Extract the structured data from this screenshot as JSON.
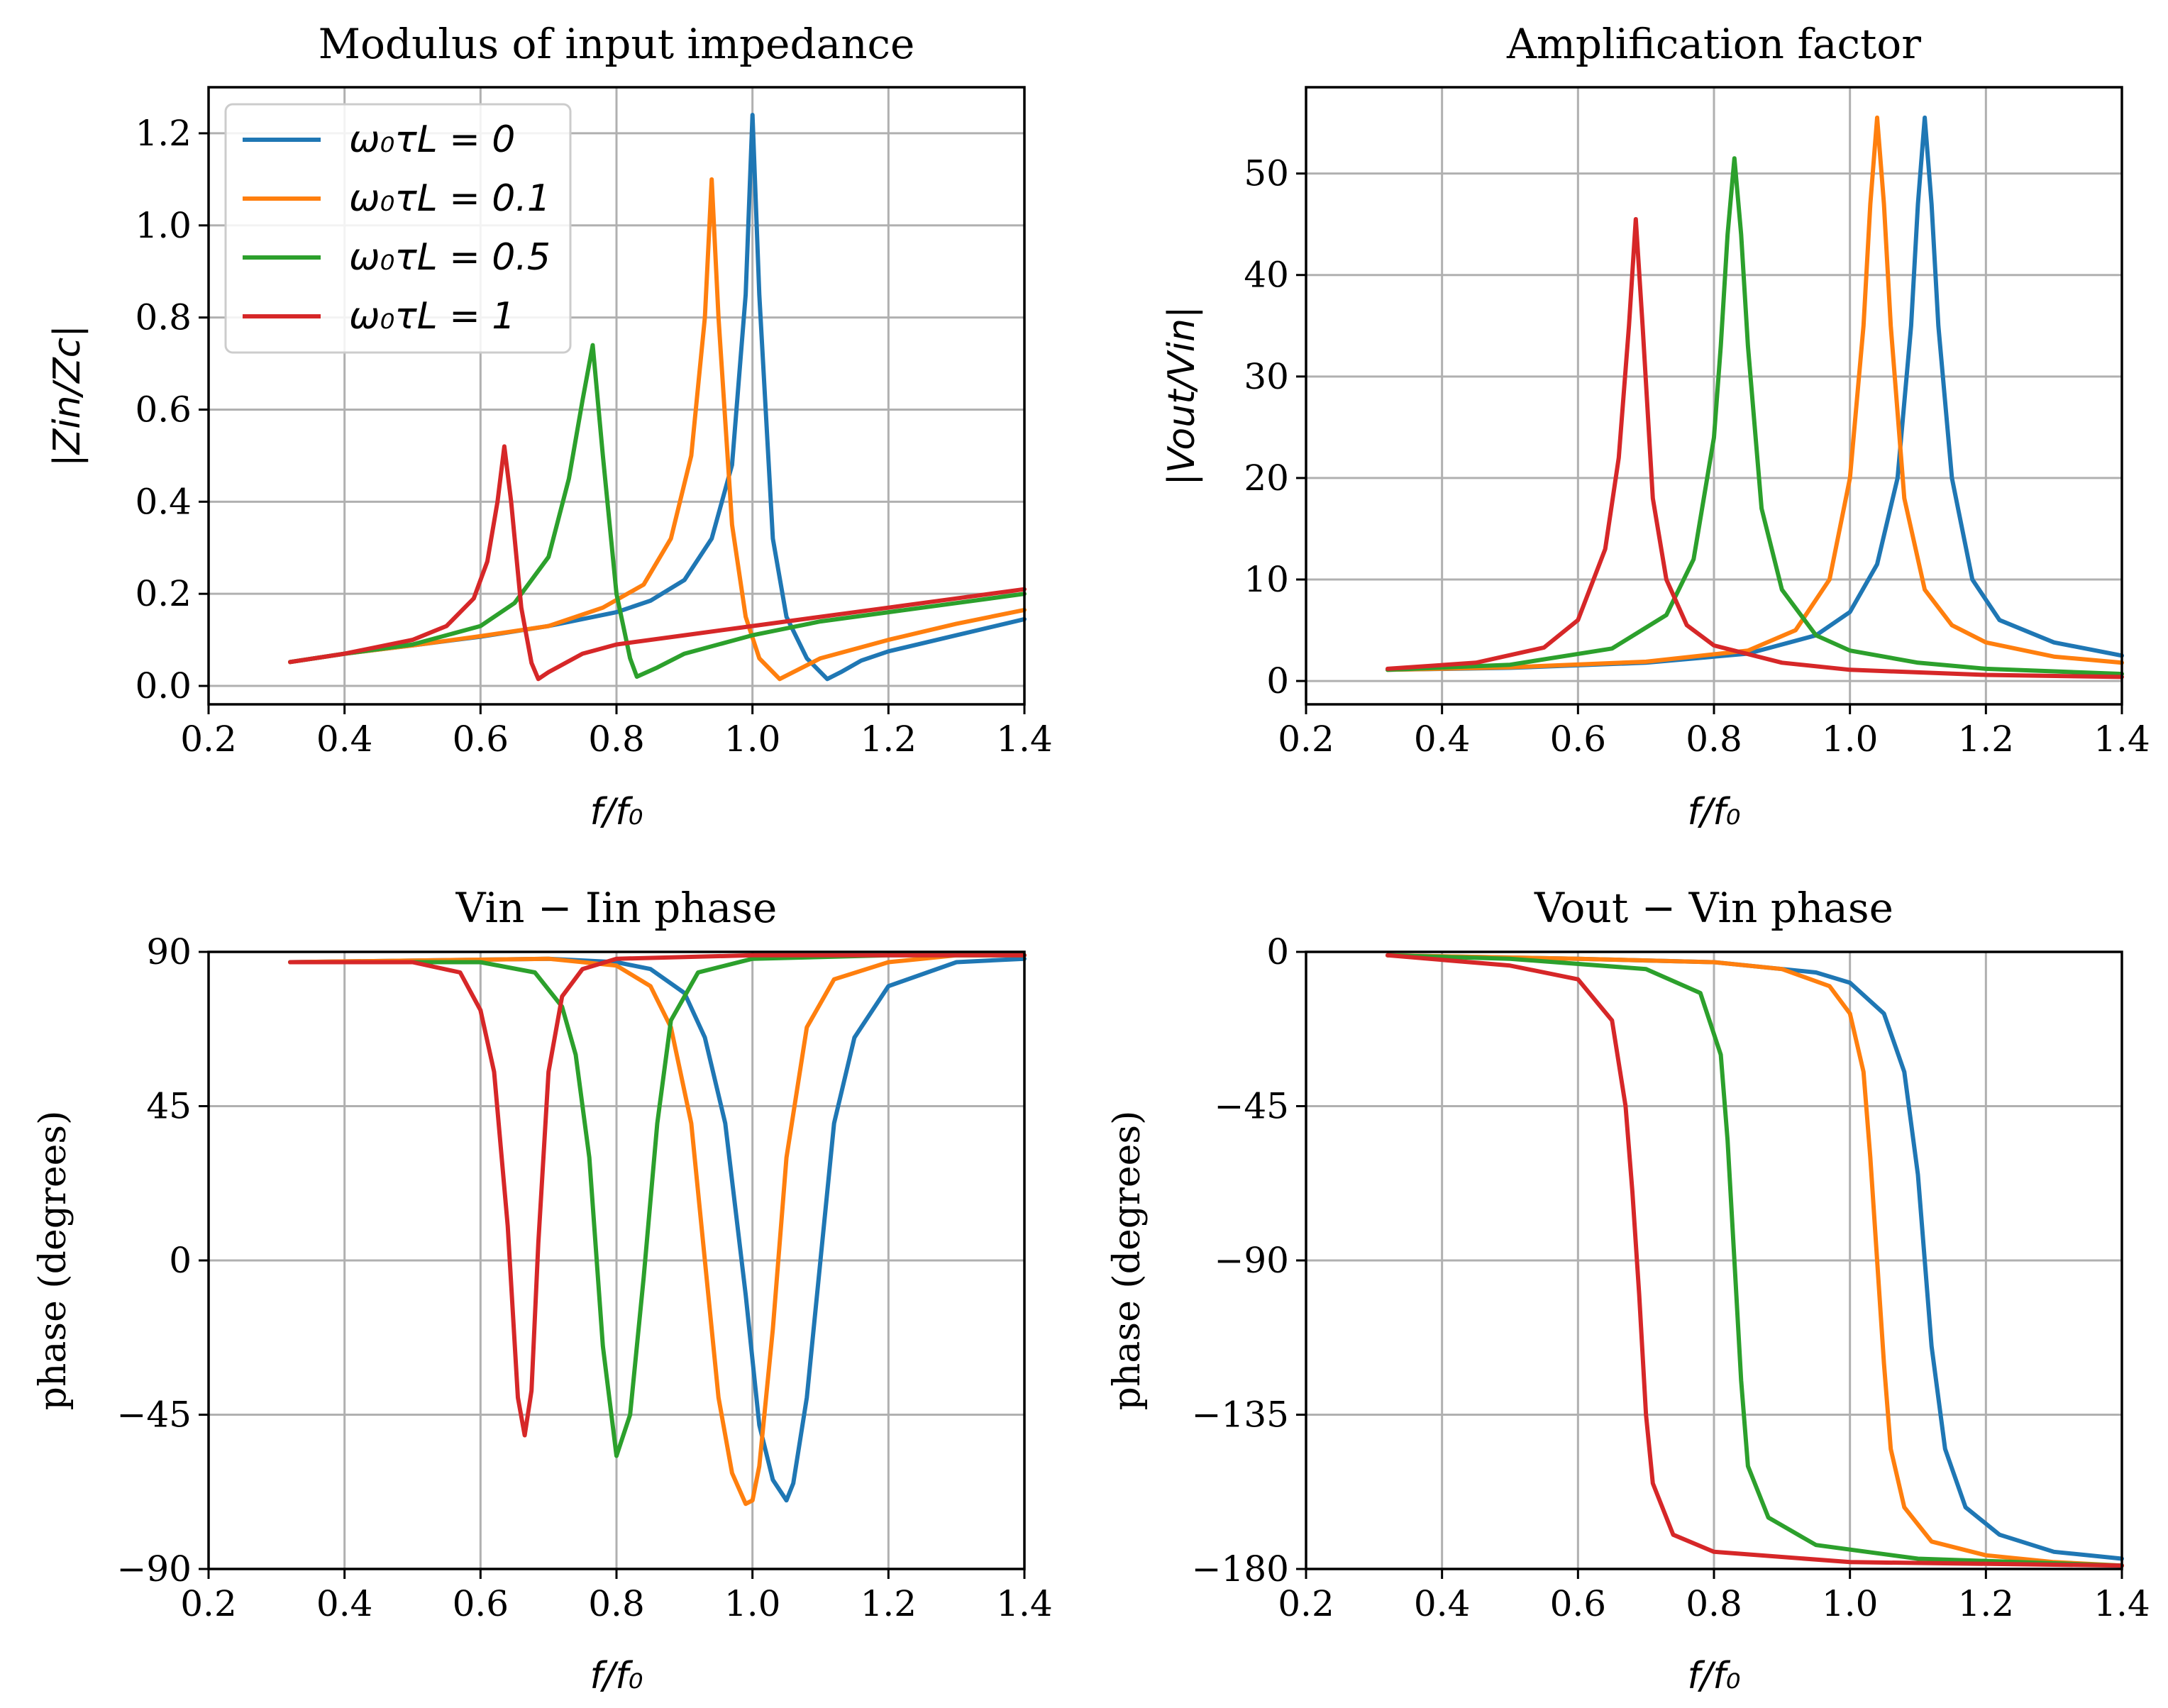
{
  "colors": {
    "blue": "#1f77b4",
    "orange": "#ff7f0e",
    "green": "#2ca02c",
    "red": "#d62728"
  },
  "legend": [
    {
      "label": "ω₀τL = 0",
      "color": "#1f77b4"
    },
    {
      "label": "ω₀τL = 0.1",
      "color": "#ff7f0e"
    },
    {
      "label": "ω₀τL = 0.5",
      "color": "#2ca02c"
    },
    {
      "label": "ω₀τL = 1",
      "color": "#d62728"
    }
  ],
  "chart_data": [
    {
      "type": "line",
      "title": "Modulus of input impedance",
      "xlabel": "f/f₀",
      "ylabel": "|Zin/Zc|",
      "xlim": [
        0.2,
        1.4
      ],
      "ylim": [
        -0.04,
        1.3
      ],
      "xticks": [
        0.2,
        0.4,
        0.6,
        0.8,
        1.0,
        1.2,
        1.4
      ],
      "xtick_labels": [
        "0.2",
        "0.4",
        "0.6",
        "0.8",
        "1.0",
        "1.2",
        "1.4"
      ],
      "yticks": [
        0.0,
        0.2,
        0.4,
        0.6,
        0.8,
        1.0,
        1.2
      ],
      "ytick_labels": [
        "0.0",
        "0.2",
        "0.4",
        "0.6",
        "0.8",
        "1.0",
        "1.2"
      ],
      "legend_position": "top-left",
      "series": [
        {
          "name": "ω₀τL = 0",
          "color": "#1f77b4",
          "x": [
            0.32,
            0.4,
            0.5,
            0.6,
            0.7,
            0.8,
            0.85,
            0.9,
            0.94,
            0.97,
            0.99,
            1.0,
            1.01,
            1.03,
            1.05,
            1.08,
            1.11,
            1.13,
            1.16,
            1.2,
            1.3,
            1.4
          ],
          "y": [
            0.052,
            0.07,
            0.088,
            0.107,
            0.13,
            0.16,
            0.185,
            0.23,
            0.32,
            0.48,
            0.85,
            1.24,
            0.85,
            0.32,
            0.15,
            0.06,
            0.015,
            0.03,
            0.055,
            0.075,
            0.11,
            0.145
          ]
        },
        {
          "name": "ω₀τL = 0.1",
          "color": "#ff7f0e",
          "x": [
            0.32,
            0.4,
            0.5,
            0.6,
            0.7,
            0.78,
            0.84,
            0.88,
            0.91,
            0.93,
            0.94,
            0.95,
            0.97,
            0.99,
            1.01,
            1.04,
            1.06,
            1.1,
            1.2,
            1.3,
            1.4
          ],
          "y": [
            0.052,
            0.07,
            0.088,
            0.108,
            0.13,
            0.17,
            0.22,
            0.32,
            0.5,
            0.8,
            1.1,
            0.8,
            0.35,
            0.15,
            0.06,
            0.015,
            0.03,
            0.06,
            0.1,
            0.135,
            0.165
          ]
        },
        {
          "name": "ω₀τL = 0.5",
          "color": "#2ca02c",
          "x": [
            0.32,
            0.4,
            0.5,
            0.6,
            0.65,
            0.7,
            0.73,
            0.75,
            0.765,
            0.78,
            0.8,
            0.82,
            0.83,
            0.86,
            0.9,
            1.0,
            1.1,
            1.2,
            1.3,
            1.4
          ],
          "y": [
            0.052,
            0.07,
            0.09,
            0.13,
            0.18,
            0.28,
            0.45,
            0.62,
            0.74,
            0.5,
            0.2,
            0.06,
            0.02,
            0.04,
            0.07,
            0.11,
            0.14,
            0.16,
            0.18,
            0.2
          ]
        },
        {
          "name": "ω₀τL = 1",
          "color": "#d62728",
          "x": [
            0.32,
            0.4,
            0.5,
            0.55,
            0.59,
            0.61,
            0.625,
            0.635,
            0.645,
            0.66,
            0.675,
            0.685,
            0.7,
            0.75,
            0.8,
            0.9,
            1.0,
            1.1,
            1.2,
            1.3,
            1.4
          ],
          "y": [
            0.052,
            0.07,
            0.1,
            0.13,
            0.19,
            0.27,
            0.4,
            0.52,
            0.4,
            0.17,
            0.05,
            0.015,
            0.03,
            0.07,
            0.09,
            0.11,
            0.13,
            0.15,
            0.17,
            0.19,
            0.21
          ]
        }
      ]
    },
    {
      "type": "line",
      "title": "Amplification factor",
      "xlabel": "f/f₀",
      "ylabel": "|Vout/Vin|",
      "xlim": [
        0.2,
        1.4
      ],
      "ylim": [
        -2.3,
        58.5
      ],
      "xticks": [
        0.2,
        0.4,
        0.6,
        0.8,
        1.0,
        1.2,
        1.4
      ],
      "xtick_labels": [
        "0.2",
        "0.4",
        "0.6",
        "0.8",
        "1.0",
        "1.2",
        "1.4"
      ],
      "yticks": [
        0,
        10,
        20,
        30,
        40,
        50
      ],
      "ytick_labels": [
        "0",
        "10",
        "20",
        "30",
        "40",
        "50"
      ],
      "series": [
        {
          "name": "ω₀τL = 0",
          "color": "#1f77b4",
          "x": [
            0.32,
            0.5,
            0.7,
            0.85,
            0.95,
            1.0,
            1.04,
            1.07,
            1.09,
            1.1,
            1.11,
            1.12,
            1.13,
            1.15,
            1.18,
            1.22,
            1.3,
            1.4
          ],
          "y": [
            1.1,
            1.3,
            1.8,
            2.7,
            4.5,
            6.8,
            11.5,
            20,
            35,
            47,
            55.5,
            47,
            35,
            20,
            10,
            6,
            3.8,
            2.5
          ]
        },
        {
          "name": "ω₀τL = 0.1",
          "color": "#ff7f0e",
          "x": [
            0.32,
            0.5,
            0.7,
            0.85,
            0.92,
            0.97,
            1.0,
            1.02,
            1.03,
            1.04,
            1.05,
            1.06,
            1.08,
            1.11,
            1.15,
            1.2,
            1.3,
            1.4
          ],
          "y": [
            1.1,
            1.35,
            1.9,
            3,
            5,
            10,
            20,
            35,
            47,
            55.5,
            47,
            35,
            18,
            9,
            5.5,
            3.8,
            2.4,
            1.8
          ]
        },
        {
          "name": "ω₀τL = 0.5",
          "color": "#2ca02c",
          "x": [
            0.32,
            0.5,
            0.65,
            0.73,
            0.77,
            0.8,
            0.81,
            0.82,
            0.83,
            0.84,
            0.85,
            0.87,
            0.9,
            0.95,
            1.0,
            1.1,
            1.2,
            1.4
          ],
          "y": [
            1.1,
            1.6,
            3.2,
            6.5,
            12,
            24,
            33,
            44,
            51.5,
            44,
            33,
            17,
            9,
            4.5,
            3,
            1.8,
            1.2,
            0.7
          ]
        },
        {
          "name": "ω₀τL = 1",
          "color": "#d62728",
          "x": [
            0.32,
            0.45,
            0.55,
            0.6,
            0.64,
            0.66,
            0.675,
            0.685,
            0.695,
            0.71,
            0.73,
            0.76,
            0.8,
            0.9,
            1.0,
            1.2,
            1.4
          ],
          "y": [
            1.2,
            1.8,
            3.3,
            6,
            13,
            22,
            35,
            45.5,
            35,
            18,
            10,
            5.5,
            3.5,
            1.8,
            1.1,
            0.6,
            0.4
          ]
        }
      ]
    },
    {
      "type": "line",
      "title": "Vin − Iin phase",
      "xlabel": "f/f₀",
      "ylabel": "phase (degrees)",
      "xlim": [
        0.2,
        1.4
      ],
      "ylim": [
        -90,
        90
      ],
      "xticks": [
        0.2,
        0.4,
        0.6,
        0.8,
        1.0,
        1.2,
        1.4
      ],
      "xtick_labels": [
        "0.2",
        "0.4",
        "0.6",
        "0.8",
        "1.0",
        "1.2",
        "1.4"
      ],
      "yticks": [
        -90,
        -45,
        0,
        45,
        90
      ],
      "ytick_labels": [
        "−90",
        "−45",
        "0",
        "45",
        "90"
      ],
      "series": [
        {
          "name": "ω₀τL = 0",
          "color": "#1f77b4",
          "x": [
            0.32,
            0.7,
            0.8,
            0.85,
            0.9,
            0.93,
            0.96,
            0.99,
            1.01,
            1.03,
            1.05,
            1.06,
            1.08,
            1.1,
            1.12,
            1.15,
            1.2,
            1.3,
            1.4
          ],
          "y": [
            87,
            88,
            87,
            85,
            78,
            65,
            40,
            -10,
            -48,
            -64,
            -70,
            -65,
            -40,
            0,
            40,
            65,
            80,
            87,
            88
          ]
        },
        {
          "name": "ω₀τL = 0.1",
          "color": "#ff7f0e",
          "x": [
            0.32,
            0.7,
            0.8,
            0.85,
            0.88,
            0.91,
            0.93,
            0.95,
            0.97,
            0.99,
            1.0,
            1.01,
            1.03,
            1.05,
            1.08,
            1.12,
            1.2,
            1.3,
            1.4
          ],
          "y": [
            87,
            88,
            86,
            80,
            68,
            40,
            0,
            -40,
            -62,
            -71,
            -70,
            -60,
            -20,
            30,
            68,
            82,
            87,
            89,
            89
          ]
        },
        {
          "name": "ω₀τL = 0.5",
          "color": "#2ca02c",
          "x": [
            0.32,
            0.6,
            0.68,
            0.72,
            0.74,
            0.76,
            0.78,
            0.8,
            0.82,
            0.84,
            0.86,
            0.88,
            0.92,
            1.0,
            1.2,
            1.4
          ],
          "y": [
            87,
            87,
            84,
            74,
            60,
            30,
            -25,
            -57,
            -45,
            -5,
            40,
            70,
            84,
            88,
            89,
            89
          ]
        },
        {
          "name": "ω₀τL = 1",
          "color": "#d62728",
          "x": [
            0.32,
            0.5,
            0.57,
            0.6,
            0.62,
            0.64,
            0.655,
            0.665,
            0.675,
            0.685,
            0.7,
            0.72,
            0.75,
            0.8,
            1.0,
            1.4
          ],
          "y": [
            87,
            87,
            84,
            73,
            55,
            10,
            -40,
            -51,
            -38,
            5,
            55,
            77,
            85,
            88,
            89,
            89
          ]
        }
      ]
    },
    {
      "type": "line",
      "title": "Vout − Vin phase",
      "xlabel": "f/f₀",
      "ylabel": "phase (degrees)",
      "xlim": [
        0.2,
        1.4
      ],
      "ylim": [
        -180,
        0
      ],
      "xticks": [
        0.2,
        0.4,
        0.6,
        0.8,
        1.0,
        1.2,
        1.4
      ],
      "xtick_labels": [
        "0.2",
        "0.4",
        "0.6",
        "0.8",
        "1.0",
        "1.2",
        "1.4"
      ],
      "yticks": [
        -180,
        -135,
        -90,
        -45,
        0
      ],
      "ytick_labels": [
        "−180",
        "−135",
        "−90",
        "−45",
        "0"
      ],
      "series": [
        {
          "name": "ω₀τL = 0",
          "color": "#1f77b4",
          "x": [
            0.32,
            0.6,
            0.8,
            0.95,
            1.0,
            1.05,
            1.08,
            1.1,
            1.11,
            1.12,
            1.14,
            1.17,
            1.22,
            1.3,
            1.4
          ],
          "y": [
            -1,
            -2,
            -3,
            -6,
            -9,
            -18,
            -35,
            -65,
            -90,
            -115,
            -145,
            -162,
            -170,
            -175,
            -177
          ]
        },
        {
          "name": "ω₀τL = 0.1",
          "color": "#ff7f0e",
          "x": [
            0.32,
            0.6,
            0.8,
            0.9,
            0.97,
            1.0,
            1.02,
            1.03,
            1.04,
            1.05,
            1.06,
            1.08,
            1.12,
            1.2,
            1.3,
            1.4
          ],
          "y": [
            -1,
            -2,
            -3,
            -5,
            -10,
            -18,
            -35,
            -60,
            -90,
            -120,
            -145,
            -162,
            -172,
            -176,
            -178,
            -179
          ]
        },
        {
          "name": "ω₀τL = 0.5",
          "color": "#2ca02c",
          "x": [
            0.32,
            0.5,
            0.7,
            0.78,
            0.81,
            0.82,
            0.83,
            0.84,
            0.85,
            0.88,
            0.95,
            1.1,
            1.4
          ],
          "y": [
            -1,
            -2,
            -5,
            -12,
            -30,
            -55,
            -90,
            -125,
            -150,
            -165,
            -173,
            -177,
            -179
          ]
        },
        {
          "name": "ω₀τL = 1",
          "color": "#d62728",
          "x": [
            0.32,
            0.5,
            0.6,
            0.65,
            0.67,
            0.68,
            0.69,
            0.7,
            0.71,
            0.74,
            0.8,
            1.0,
            1.4
          ],
          "y": [
            -1,
            -4,
            -8,
            -20,
            -45,
            -70,
            -100,
            -135,
            -155,
            -170,
            -175,
            -178,
            -179
          ]
        }
      ]
    }
  ]
}
